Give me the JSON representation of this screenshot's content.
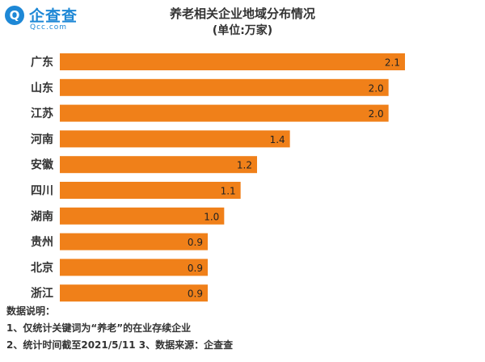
{
  "brand": {
    "icon_letter": "Q",
    "name": "企查查",
    "domain": "Qcc.com"
  },
  "chart_data": {
    "type": "bar",
    "orientation": "horizontal",
    "title": "养老相关企业地域分布情况",
    "subtitle": "(单位:万家)",
    "categories": [
      "广东",
      "山东",
      "江苏",
      "河南",
      "安徽",
      "四川",
      "湖南",
      "贵州",
      "北京",
      "浙江"
    ],
    "values": [
      2.1,
      2.0,
      2.0,
      1.4,
      1.2,
      1.1,
      1.0,
      0.9,
      0.9,
      0.9
    ],
    "value_labels": [
      "2.1",
      "2.0",
      "2.0",
      "1.4",
      "1.2",
      "1.1",
      "1.0",
      "0.9",
      "0.9",
      "0.9"
    ],
    "xlim": [
      0,
      2.1
    ],
    "bar_color": "#f08019",
    "grid": false,
    "legend": "none"
  },
  "notes": {
    "heading": "数据说明：",
    "line1": "1、仅统计关键词为“养老”的在业存续企业",
    "line2": "2、统计时间截至2021/5/11   3、数据来源：企查查"
  }
}
